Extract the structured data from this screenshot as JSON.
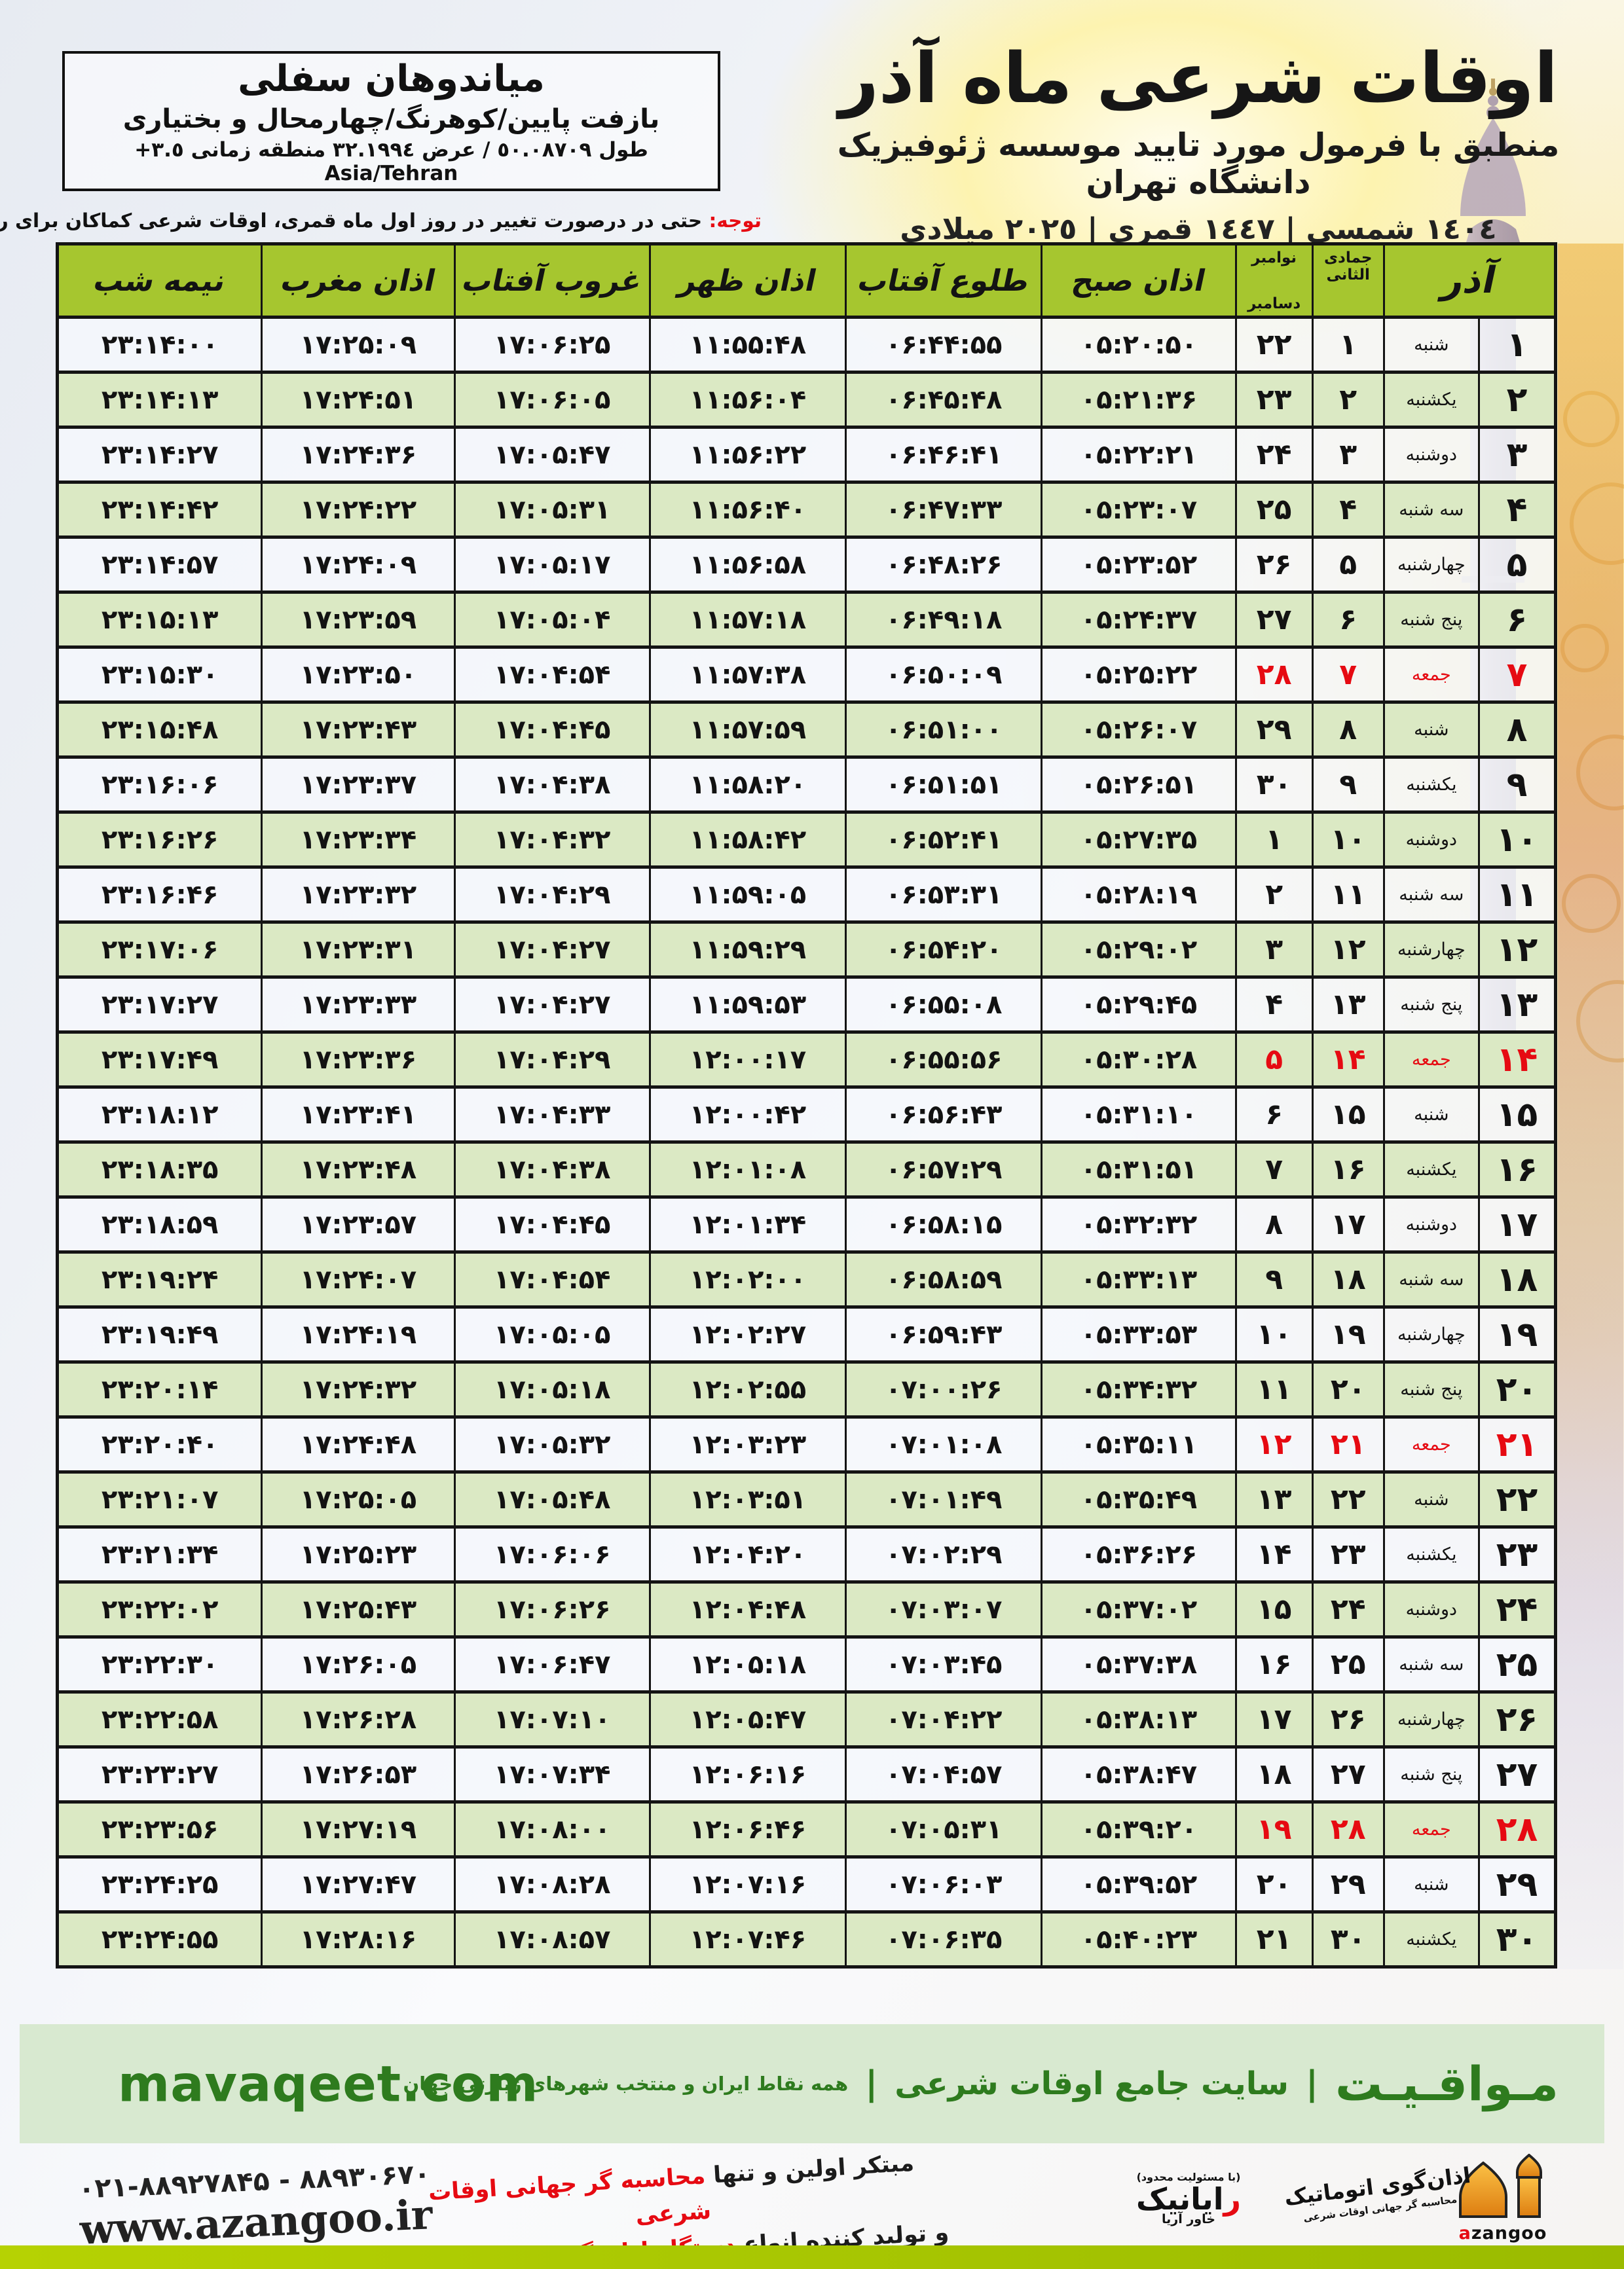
{
  "location_box": {
    "name": "میاندوهان سفلی",
    "region": "بازفت پایین/کوهرنگ/چهارمحال و بختیاری",
    "coords": "طول ٥٠.٠٨٧٠٩ / عرض ٣٢.١٩٩٤ منطقه زمانی ٣.٥+ Asia/Tehran"
  },
  "header": {
    "title": "اوقات شرعی ماه آذر",
    "subtitle": "منطبق با فرمول مورد تایید موسسه ژئوفیزیک دانشگاه تهران",
    "dates": "١٤٠٤ شمسی | ١٤٤٧ قمری | ٢٠٢٥ میلادی"
  },
  "note": {
    "label": "توجه:",
    "text": " حتی در درصورت تغییر در روز اول ماه قمری، اوقات شرعی کماکان برای روزهای شمسی و میلادی معتبر است."
  },
  "table": {
    "headers": {
      "azar": "آذر",
      "lunar": "جمادی الثانی",
      "greg_top": "نوامبر",
      "greg_bottom": "دسامبر",
      "fajr": "اذان صبح",
      "sunrise": "طلوع آفتاب",
      "dhuhr": "اذان ظهر",
      "sunset": "غروب آفتاب",
      "maghrib": "اذان مغرب",
      "midnight": "نیمه شب"
    },
    "rows": [
      {
        "day": "۱",
        "weekday": "شنبه",
        "lunar": "۱",
        "greg": "۲۲",
        "times": [
          "۰۵:۲۰:۵۰",
          "۰۶:۴۴:۵۵",
          "۱۱:۵۵:۴۸",
          "۱۷:۰۶:۲۵",
          "۱۷:۲۵:۰۹",
          "۲۳:۱۴:۰۰"
        ],
        "friday": false
      },
      {
        "day": "۲",
        "weekday": "یکشنبه",
        "lunar": "۲",
        "greg": "۲۳",
        "times": [
          "۰۵:۲۱:۳۶",
          "۰۶:۴۵:۴۸",
          "۱۱:۵۶:۰۴",
          "۱۷:۰۶:۰۵",
          "۱۷:۲۴:۵۱",
          "۲۳:۱۴:۱۳"
        ],
        "friday": false
      },
      {
        "day": "۳",
        "weekday": "دوشنبه",
        "lunar": "۳",
        "greg": "۲۴",
        "times": [
          "۰۵:۲۲:۲۱",
          "۰۶:۴۶:۴۱",
          "۱۱:۵۶:۲۲",
          "۱۷:۰۵:۴۷",
          "۱۷:۲۴:۳۶",
          "۲۳:۱۴:۲۷"
        ],
        "friday": false
      },
      {
        "day": "۴",
        "weekday": "سه شنبه",
        "lunar": "۴",
        "greg": "۲۵",
        "times": [
          "۰۵:۲۳:۰۷",
          "۰۶:۴۷:۳۳",
          "۱۱:۵۶:۴۰",
          "۱۷:۰۵:۳۱",
          "۱۷:۲۴:۲۲",
          "۲۳:۱۴:۴۲"
        ],
        "friday": false
      },
      {
        "day": "۵",
        "weekday": "چهارشنبه",
        "lunar": "۵",
        "greg": "۲۶",
        "times": [
          "۰۵:۲۳:۵۲",
          "۰۶:۴۸:۲۶",
          "۱۱:۵۶:۵۸",
          "۱۷:۰۵:۱۷",
          "۱۷:۲۴:۰۹",
          "۲۳:۱۴:۵۷"
        ],
        "friday": false
      },
      {
        "day": "۶",
        "weekday": "پنج شنبه",
        "lunar": "۶",
        "greg": "۲۷",
        "times": [
          "۰۵:۲۴:۳۷",
          "۰۶:۴۹:۱۸",
          "۱۱:۵۷:۱۸",
          "۱۷:۰۵:۰۴",
          "۱۷:۲۳:۵۹",
          "۲۳:۱۵:۱۳"
        ],
        "friday": false
      },
      {
        "day": "۷",
        "weekday": "جمعه",
        "lunar": "۷",
        "greg": "۲۸",
        "times": [
          "۰۵:۲۵:۲۲",
          "۰۶:۵۰:۰۹",
          "۱۱:۵۷:۳۸",
          "۱۷:۰۴:۵۴",
          "۱۷:۲۳:۵۰",
          "۲۳:۱۵:۳۰"
        ],
        "friday": true
      },
      {
        "day": "۸",
        "weekday": "شنبه",
        "lunar": "۸",
        "greg": "۲۹",
        "times": [
          "۰۵:۲۶:۰۷",
          "۰۶:۵۱:۰۰",
          "۱۱:۵۷:۵۹",
          "۱۷:۰۴:۴۵",
          "۱۷:۲۳:۴۳",
          "۲۳:۱۵:۴۸"
        ],
        "friday": false
      },
      {
        "day": "۹",
        "weekday": "یکشنبه",
        "lunar": "۹",
        "greg": "۳۰",
        "times": [
          "۰۵:۲۶:۵۱",
          "۰۶:۵۱:۵۱",
          "۱۱:۵۸:۲۰",
          "۱۷:۰۴:۳۸",
          "۱۷:۲۳:۳۷",
          "۲۳:۱۶:۰۶"
        ],
        "friday": false
      },
      {
        "day": "۱۰",
        "weekday": "دوشنبه",
        "lunar": "۱۰",
        "greg": "۱",
        "times": [
          "۰۵:۲۷:۳۵",
          "۰۶:۵۲:۴۱",
          "۱۱:۵۸:۴۲",
          "۱۷:۰۴:۳۲",
          "۱۷:۲۳:۳۴",
          "۲۳:۱۶:۲۶"
        ],
        "friday": false
      },
      {
        "day": "۱۱",
        "weekday": "سه شنبه",
        "lunar": "۱۱",
        "greg": "۲",
        "times": [
          "۰۵:۲۸:۱۹",
          "۰۶:۵۳:۳۱",
          "۱۱:۵۹:۰۵",
          "۱۷:۰۴:۲۹",
          "۱۷:۲۳:۳۲",
          "۲۳:۱۶:۴۶"
        ],
        "friday": false
      },
      {
        "day": "۱۲",
        "weekday": "چهارشنبه",
        "lunar": "۱۲",
        "greg": "۳",
        "times": [
          "۰۵:۲۹:۰۲",
          "۰۶:۵۴:۲۰",
          "۱۱:۵۹:۲۹",
          "۱۷:۰۴:۲۷",
          "۱۷:۲۳:۳۱",
          "۲۳:۱۷:۰۶"
        ],
        "friday": false
      },
      {
        "day": "۱۳",
        "weekday": "پنج شنبه",
        "lunar": "۱۳",
        "greg": "۴",
        "times": [
          "۰۵:۲۹:۴۵",
          "۰۶:۵۵:۰۸",
          "۱۱:۵۹:۵۳",
          "۱۷:۰۴:۲۷",
          "۱۷:۲۳:۳۳",
          "۲۳:۱۷:۲۷"
        ],
        "friday": false
      },
      {
        "day": "۱۴",
        "weekday": "جمعه",
        "lunar": "۱۴",
        "greg": "۵",
        "times": [
          "۰۵:۳۰:۲۸",
          "۰۶:۵۵:۵۶",
          "۱۲:۰۰:۱۷",
          "۱۷:۰۴:۲۹",
          "۱۷:۲۳:۳۶",
          "۲۳:۱۷:۴۹"
        ],
        "friday": true
      },
      {
        "day": "۱۵",
        "weekday": "شنبه",
        "lunar": "۱۵",
        "greg": "۶",
        "times": [
          "۰۵:۳۱:۱۰",
          "۰۶:۵۶:۴۳",
          "۱۲:۰۰:۴۲",
          "۱۷:۰۴:۳۳",
          "۱۷:۲۳:۴۱",
          "۲۳:۱۸:۱۲"
        ],
        "friday": false
      },
      {
        "day": "۱۶",
        "weekday": "یکشنبه",
        "lunar": "۱۶",
        "greg": "۷",
        "times": [
          "۰۵:۳۱:۵۱",
          "۰۶:۵۷:۲۹",
          "۱۲:۰۱:۰۸",
          "۱۷:۰۴:۳۸",
          "۱۷:۲۳:۴۸",
          "۲۳:۱۸:۳۵"
        ],
        "friday": false
      },
      {
        "day": "۱۷",
        "weekday": "دوشنبه",
        "lunar": "۱۷",
        "greg": "۸",
        "times": [
          "۰۵:۳۲:۳۲",
          "۰۶:۵۸:۱۵",
          "۱۲:۰۱:۳۴",
          "۱۷:۰۴:۴۵",
          "۱۷:۲۳:۵۷",
          "۲۳:۱۸:۵۹"
        ],
        "friday": false
      },
      {
        "day": "۱۸",
        "weekday": "سه شنبه",
        "lunar": "۱۸",
        "greg": "۹",
        "times": [
          "۰۵:۳۳:۱۳",
          "۰۶:۵۸:۵۹",
          "۱۲:۰۲:۰۰",
          "۱۷:۰۴:۵۴",
          "۱۷:۲۴:۰۷",
          "۲۳:۱۹:۲۴"
        ],
        "friday": false
      },
      {
        "day": "۱۹",
        "weekday": "چهارشنبه",
        "lunar": "۱۹",
        "greg": "۱۰",
        "times": [
          "۰۵:۳۳:۵۳",
          "۰۶:۵۹:۴۳",
          "۱۲:۰۲:۲۷",
          "۱۷:۰۵:۰۵",
          "۱۷:۲۴:۱۹",
          "۲۳:۱۹:۴۹"
        ],
        "friday": false
      },
      {
        "day": "۲۰",
        "weekday": "پنج شنبه",
        "lunar": "۲۰",
        "greg": "۱۱",
        "times": [
          "۰۵:۳۴:۳۲",
          "۰۷:۰۰:۲۶",
          "۱۲:۰۲:۵۵",
          "۱۷:۰۵:۱۸",
          "۱۷:۲۴:۳۲",
          "۲۳:۲۰:۱۴"
        ],
        "friday": false
      },
      {
        "day": "۲۱",
        "weekday": "جمعه",
        "lunar": "۲۱",
        "greg": "۱۲",
        "times": [
          "۰۵:۳۵:۱۱",
          "۰۷:۰۱:۰۸",
          "۱۲:۰۳:۲۳",
          "۱۷:۰۵:۳۲",
          "۱۷:۲۴:۴۸",
          "۲۳:۲۰:۴۰"
        ],
        "friday": true
      },
      {
        "day": "۲۲",
        "weekday": "شنبه",
        "lunar": "۲۲",
        "greg": "۱۳",
        "times": [
          "۰۵:۳۵:۴۹",
          "۰۷:۰۱:۴۹",
          "۱۲:۰۳:۵۱",
          "۱۷:۰۵:۴۸",
          "۱۷:۲۵:۰۵",
          "۲۳:۲۱:۰۷"
        ],
        "friday": false
      },
      {
        "day": "۲۳",
        "weekday": "یکشنبه",
        "lunar": "۲۳",
        "greg": "۱۴",
        "times": [
          "۰۵:۳۶:۲۶",
          "۰۷:۰۲:۲۹",
          "۱۲:۰۴:۲۰",
          "۱۷:۰۶:۰۶",
          "۱۷:۲۵:۲۳",
          "۲۳:۲۱:۳۴"
        ],
        "friday": false
      },
      {
        "day": "۲۴",
        "weekday": "دوشنبه",
        "lunar": "۲۴",
        "greg": "۱۵",
        "times": [
          "۰۵:۳۷:۰۲",
          "۰۷:۰۳:۰۷",
          "۱۲:۰۴:۴۸",
          "۱۷:۰۶:۲۶",
          "۱۷:۲۵:۴۳",
          "۲۳:۲۲:۰۲"
        ],
        "friday": false
      },
      {
        "day": "۲۵",
        "weekday": "سه شنبه",
        "lunar": "۲۵",
        "greg": "۱۶",
        "times": [
          "۰۵:۳۷:۳۸",
          "۰۷:۰۳:۴۵",
          "۱۲:۰۵:۱۸",
          "۱۷:۰۶:۴۷",
          "۱۷:۲۶:۰۵",
          "۲۳:۲۲:۳۰"
        ],
        "friday": false
      },
      {
        "day": "۲۶",
        "weekday": "چهارشنبه",
        "lunar": "۲۶",
        "greg": "۱۷",
        "times": [
          "۰۵:۳۸:۱۳",
          "۰۷:۰۴:۲۲",
          "۱۲:۰۵:۴۷",
          "۱۷:۰۷:۱۰",
          "۱۷:۲۶:۲۸",
          "۲۳:۲۲:۵۸"
        ],
        "friday": false
      },
      {
        "day": "۲۷",
        "weekday": "پنج شنبه",
        "lunar": "۲۷",
        "greg": "۱۸",
        "times": [
          "۰۵:۳۸:۴۷",
          "۰۷:۰۴:۵۷",
          "۱۲:۰۶:۱۶",
          "۱۷:۰۷:۳۴",
          "۱۷:۲۶:۵۳",
          "۲۳:۲۳:۲۷"
        ],
        "friday": false
      },
      {
        "day": "۲۸",
        "weekday": "جمعه",
        "lunar": "۲۸",
        "greg": "۱۹",
        "times": [
          "۰۵:۳۹:۲۰",
          "۰۷:۰۵:۳۱",
          "۱۲:۰۶:۴۶",
          "۱۷:۰۸:۰۰",
          "۱۷:۲۷:۱۹",
          "۲۳:۲۳:۵۶"
        ],
        "friday": true
      },
      {
        "day": "۲۹",
        "weekday": "شنبه",
        "lunar": "۲۹",
        "greg": "۲۰",
        "times": [
          "۰۵:۳۹:۵۲",
          "۰۷:۰۶:۰۳",
          "۱۲:۰۷:۱۶",
          "۱۷:۰۸:۲۸",
          "۱۷:۲۷:۴۷",
          "۲۳:۲۴:۲۵"
        ],
        "friday": false
      },
      {
        "day": "۳۰",
        "weekday": "یکشنبه",
        "lunar": "۳۰",
        "greg": "۲۱",
        "times": [
          "۰۵:۴۰:۲۳",
          "۰۷:۰۶:۳۵",
          "۱۲:۰۷:۴۶",
          "۱۷:۰۸:۵۷",
          "۱۷:۲۸:۱۶",
          "۲۳:۲۴:۵۵"
        ],
        "friday": false
      }
    ]
  },
  "banner": {
    "site_fa": "مـواقـیـت",
    "site_desc": "سایت جامع اوقات شرعی",
    "site_sub": "همه نقاط ایران و منتخب شهرهای زیارتی جهان",
    "site_url": "mavaqeet.com"
  },
  "footer": {
    "phone": "۰۲۱-۸۸۹۲۷۸۴۵ - ۸۸۹۳۰۶۷۰",
    "url": "www.azangoo.ir",
    "slogan_black1": "مبتکر اولین و تنها ",
    "slogan_red1": "محاسبه گر جهانی اوقات شرعی",
    "slogan_black2": "و تولید کننده انواع ",
    "slogan_red2": "دستگاه اذان گوی تمام خودکار ماهواره ای",
    "rayanik_top": "(با مسئولیت محدود)",
    "rayanik_r": "ر",
    "rayanik_rest": "ایانیک",
    "rayanik_sub": "خاور آریا",
    "azangoo_fa": "اذان‌گوی اتوماتیک",
    "azangoo_sub": "محاسبه گر جهانی اوقات شرعی",
    "azangoo_en_a": "a",
    "azangoo_en_rest": "zangoo"
  },
  "colors": {
    "green-header": "#a6c62f",
    "green-row": "#dbe9c4",
    "red": "#e60a12",
    "banner-bg": "#d8e9d0",
    "banner-text": "#2e7b1e",
    "bar-green": "#a3c70e",
    "orange": "#f29c1f"
  }
}
